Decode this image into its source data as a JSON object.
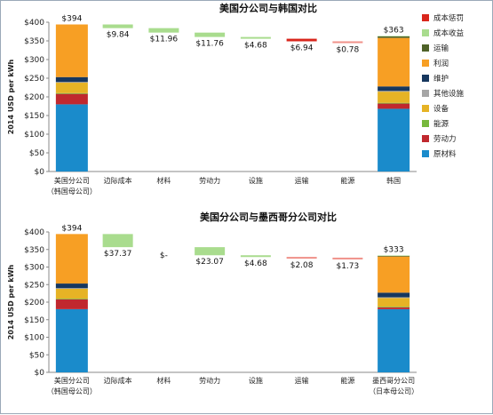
{
  "chart_data": [
    {
      "type": "waterfall",
      "title": "美国分公司与韩国对比",
      "ylabel": "2014 USD per kWh",
      "ylim": [
        0,
        400
      ],
      "yticks": [
        "$0",
        "$50",
        "$100",
        "$150",
        "$200",
        "$250",
        "$300",
        "$350",
        "$400"
      ],
      "categories": [
        [
          "美国分公司",
          "（韩国母公司）"
        ],
        [
          "边际成本"
        ],
        [
          "材料"
        ],
        [
          "劳动力"
        ],
        [
          "设施"
        ],
        [
          "运输"
        ],
        [
          "能源"
        ],
        [
          "韩国"
        ]
      ],
      "start_bar": {
        "total": 394,
        "label": "$394",
        "segments": [
          {
            "name": "原材料",
            "value": 180
          },
          {
            "name": "劳动力",
            "value": 28
          },
          {
            "name": "能源",
            "value": 2
          },
          {
            "name": "设备",
            "value": 28
          },
          {
            "name": "其他设施",
            "value": 2
          },
          {
            "name": "维护",
            "value": 13
          },
          {
            "name": "利润",
            "value": 141
          }
        ]
      },
      "steps": [
        {
          "label": "$9.84",
          "value": -9.84,
          "color": "#a9dc8e"
        },
        {
          "label": "$11.96",
          "value": -11.96,
          "color": "#a9dc8e"
        },
        {
          "label": "$11.76",
          "value": -11.76,
          "color": "#a9dc8e"
        },
        {
          "label": "$4.68",
          "value": -4.68,
          "color": "#a9dc8e"
        },
        {
          "label": "$6.94",
          "value": -6.94,
          "color": "#d9261c"
        },
        {
          "label": "$0.78",
          "value": -0.78,
          "color": "#f0928a"
        }
      ],
      "end_bar": {
        "total": 363,
        "label": "$363",
        "segments": [
          {
            "name": "原材料",
            "value": 168
          },
          {
            "name": "劳动力",
            "value": 14
          },
          {
            "name": "能源",
            "value": 2
          },
          {
            "name": "设备",
            "value": 30
          },
          {
            "name": "其他设施",
            "value": 2
          },
          {
            "name": "维护",
            "value": 12
          },
          {
            "name": "利润",
            "value": 130
          },
          {
            "name": "运输",
            "value": 4
          },
          {
            "name": "成本收益",
            "value": 1
          }
        ]
      }
    },
    {
      "type": "waterfall",
      "title": "美国分公司与墨西哥分公司对比",
      "ylabel": "2014 USD per kWh",
      "ylim": [
        0,
        400
      ],
      "yticks": [
        "$0",
        "$50",
        "$100",
        "$150",
        "$200",
        "$250",
        "$300",
        "$350",
        "$400"
      ],
      "categories": [
        [
          "美国分公司",
          "（韩国母公司）"
        ],
        [
          "边际成本"
        ],
        [
          "材料"
        ],
        [
          "劳动力"
        ],
        [
          "设施"
        ],
        [
          "运输"
        ],
        [
          "能源"
        ],
        [
          "墨西哥分公司",
          "（日本母公司）"
        ]
      ],
      "start_bar": {
        "total": 394,
        "label": "$394",
        "segments": [
          {
            "name": "原材料",
            "value": 180
          },
          {
            "name": "劳动力",
            "value": 28
          },
          {
            "name": "能源",
            "value": 2
          },
          {
            "name": "设备",
            "value": 28
          },
          {
            "name": "其他设施",
            "value": 2
          },
          {
            "name": "维护",
            "value": 13
          },
          {
            "name": "利润",
            "value": 141
          }
        ]
      },
      "steps": [
        {
          "label": "$37.37",
          "value": -37.37,
          "color": "#a9dc8e"
        },
        {
          "label": "$-",
          "value": 0,
          "color": "#a9dc8e"
        },
        {
          "label": "$23.07",
          "value": -23.07,
          "color": "#a9dc8e"
        },
        {
          "label": "$4.68",
          "value": -4.68,
          "color": "#a9dc8e"
        },
        {
          "label": "$2.08",
          "value": -2.08,
          "color": "#f0928a"
        },
        {
          "label": "$1.73",
          "value": -1.73,
          "color": "#f0928a"
        }
      ],
      "end_bar": {
        "total": 333,
        "label": "$333",
        "segments": [
          {
            "name": "原材料",
            "value": 180
          },
          {
            "name": "劳动力",
            "value": 5
          },
          {
            "name": "能源",
            "value": 2
          },
          {
            "name": "设备",
            "value": 25
          },
          {
            "name": "其他设施",
            "value": 2
          },
          {
            "name": "维护",
            "value": 13
          },
          {
            "name": "利润",
            "value": 103
          },
          {
            "name": "运输",
            "value": 2
          },
          {
            "name": "成本收益",
            "value": 1
          }
        ]
      }
    }
  ],
  "legend": {
    "placement": "right",
    "items": [
      {
        "name": "成本惩罚",
        "color": "#d9261c"
      },
      {
        "name": "成本收益",
        "color": "#a9dc8e"
      },
      {
        "name": "运输",
        "color": "#4f6228"
      },
      {
        "name": "利润",
        "color": "#f79f24"
      },
      {
        "name": "维护",
        "color": "#17375e"
      },
      {
        "name": "其他设施",
        "color": "#a6a6a6"
      },
      {
        "name": "设备",
        "color": "#e6b325"
      },
      {
        "name": "能源",
        "color": "#77b83c"
      },
      {
        "name": "劳动力",
        "color": "#c0282e"
      },
      {
        "name": "原材料",
        "color": "#1a8bcb"
      }
    ]
  },
  "segment_colors": {
    "原材料": "#1a8bcb",
    "劳动力": "#c0282e",
    "能源": "#77b83c",
    "设备": "#e6b325",
    "其他设施": "#a6a6a6",
    "维护": "#17375e",
    "利润": "#f79f24",
    "运输": "#4f6228",
    "成本收益": "#a9dc8e"
  },
  "axis_color": "#888888"
}
